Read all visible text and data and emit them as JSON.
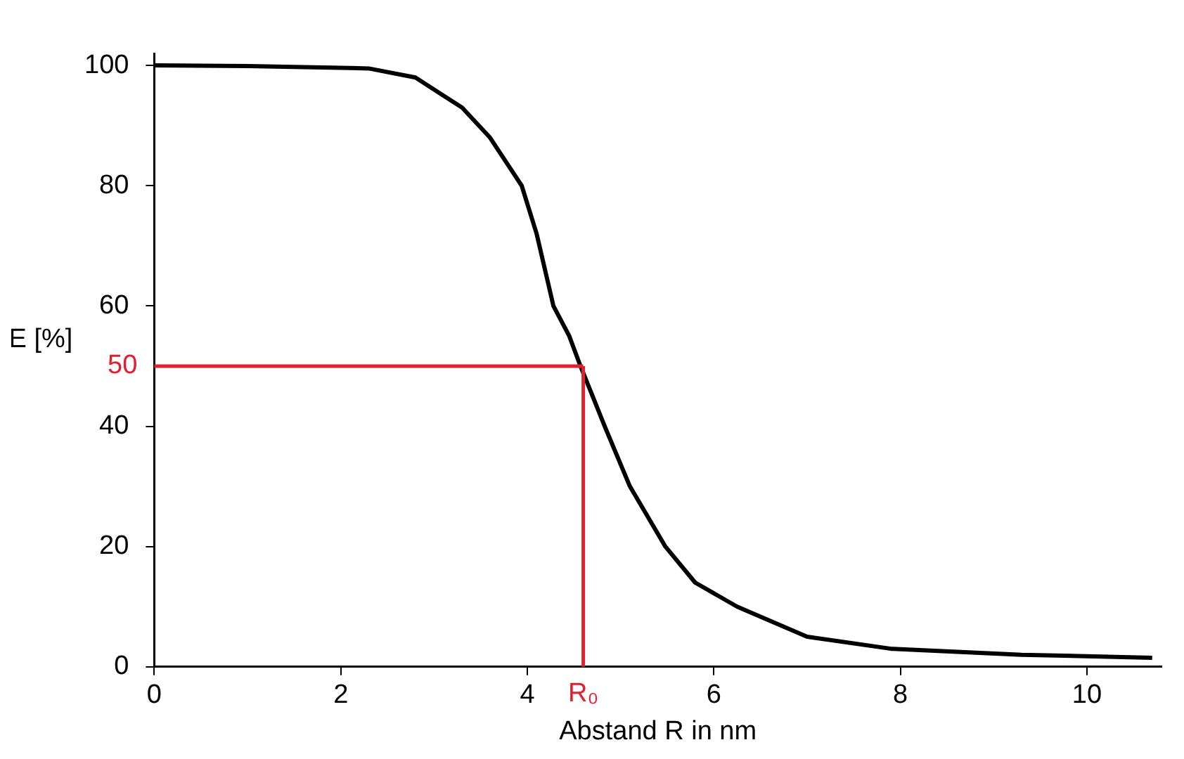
{
  "chart_data": {
    "type": "line",
    "xlabel": "Abstand R in nm",
    "ylabel": "E [%]",
    "x": [
      0,
      1,
      2,
      2.3,
      2.8,
      3.1,
      3.3,
      3.6,
      3.94,
      4.1,
      4.28,
      4.45,
      4.57,
      4.7,
      4.83,
      5.1,
      5.48,
      5.8,
      6.25,
      7.0,
      7.9,
      9.3,
      10.7
    ],
    "series": [
      {
        "color": "#000000",
        "values": [
          100,
          99.9,
          99.6,
          99.5,
          98,
          95,
          93,
          88,
          80,
          72,
          60,
          55,
          50,
          45,
          40,
          30,
          20,
          14,
          10,
          5,
          3,
          2,
          1.5
        ]
      }
    ],
    "xlim": [
      0,
      10.8
    ],
    "xticks": [
      0,
      2,
      4,
      6,
      8,
      10
    ],
    "ylim": [
      0,
      102
    ],
    "yticks": [
      0,
      20,
      40,
      60,
      80,
      100
    ],
    "grid": false,
    "legend": false,
    "marker": "none",
    "line_style": "solid",
    "ref_lines": [
      {
        "axis": "y",
        "value": 50,
        "label": "50",
        "color": "#e02030"
      },
      {
        "axis": "x",
        "value": 4.6,
        "label": "R₀",
        "color": "#e02030"
      }
    ]
  }
}
